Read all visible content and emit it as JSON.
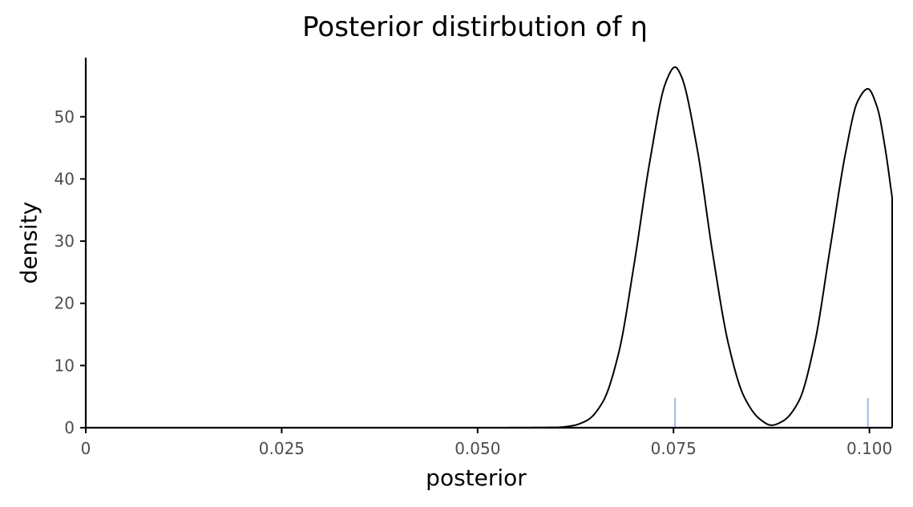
{
  "chart_data": {
    "type": "line",
    "title": "Posterior distirbution of η",
    "xlabel": "posterior",
    "ylabel": "density",
    "xlim": [
      0,
      0.1029
    ],
    "ylim": [
      0,
      59.5
    ],
    "x_ticks": [
      0,
      0.025,
      0.05,
      0.075,
      0.1
    ],
    "x_tick_labels": [
      "0",
      "0.025",
      "0.050",
      "0.075",
      "0.100"
    ],
    "y_ticks": [
      0,
      10,
      20,
      30,
      40,
      50
    ],
    "y_tick_labels": [
      "0",
      "10",
      "20",
      "30",
      "40",
      "50"
    ],
    "grid": false,
    "legend": "none",
    "series": [
      {
        "type": "density",
        "color": "#000000",
        "x": [
          0,
          0.05,
          0.06,
          0.062,
          0.064,
          0.066,
          0.068,
          0.07,
          0.072,
          0.074,
          0.0752,
          0.076,
          0.078,
          0.08,
          0.082,
          0.084,
          0.086,
          0.0875,
          0.089,
          0.091,
          0.093,
          0.095,
          0.097,
          0.0985,
          0.0998,
          0.101,
          0.102,
          0.1029
        ],
        "y": [
          0,
          0,
          0.05,
          0.3,
          1.2,
          4.2,
          12,
          26.5,
          43,
          55.5,
          58,
          56.5,
          45,
          28,
          13.5,
          5,
          1.4,
          0.4,
          1.1,
          4.3,
          13.5,
          29,
          44.5,
          52.5,
          54.5,
          51.5,
          45,
          37
        ]
      }
    ],
    "rug": {
      "color": "#9fb8e8",
      "x": [
        0.0752,
        0.0998
      ],
      "height": 4.8
    }
  }
}
